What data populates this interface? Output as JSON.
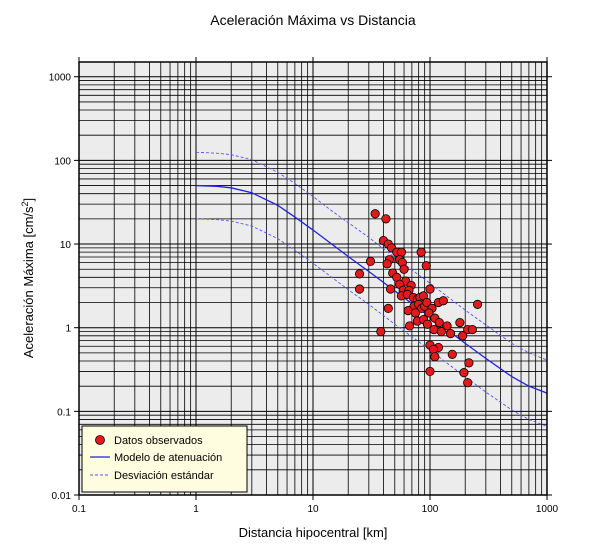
{
  "chart_data": {
    "type": "scatter",
    "title": "Aceleración Máxima vs Distancia",
    "xlabel": "Distancia hipocentral [km]",
    "ylabel_main": "Aceleración Máxima [cm/s",
    "ylabel_sup": "2",
    "ylabel_end": "]",
    "xscale": "log",
    "yscale": "log",
    "xlim": [
      0.1,
      1000
    ],
    "ylim": [
      0.01,
      1500
    ],
    "grid": true,
    "legend_position": "bottom-left",
    "x_ticks": [
      {
        "value": 0.1,
        "label": "0.1"
      },
      {
        "value": 1,
        "label": "1"
      },
      {
        "value": 10,
        "label": "10"
      },
      {
        "value": 100,
        "label": "100"
      },
      {
        "value": 1000,
        "label": "1000"
      }
    ],
    "y_ticks": [
      {
        "value": 0.01,
        "label": "0.01"
      },
      {
        "value": 0.1,
        "label": "0.1"
      },
      {
        "value": 1,
        "label": "1"
      },
      {
        "value": 10,
        "label": "10"
      },
      {
        "value": 100,
        "label": "100"
      },
      {
        "value": 1000,
        "label": "1000"
      }
    ],
    "colors": {
      "points": "#e31a1c",
      "model": "#2222dd",
      "std": "#5555ee",
      "legend_bg": "#fffde0"
    },
    "series": [
      {
        "name": "Datos observados",
        "kind": "points",
        "points": [
          [
            34,
            23
          ],
          [
            42,
            20
          ],
          [
            40,
            11
          ],
          [
            44,
            10
          ],
          [
            47,
            9
          ],
          [
            52,
            8
          ],
          [
            57,
            8
          ],
          [
            84,
            8
          ],
          [
            31,
            6.2
          ],
          [
            45,
            6.5
          ],
          [
            43,
            5.8
          ],
          [
            55,
            6.5
          ],
          [
            58,
            6
          ],
          [
            60,
            5
          ],
          [
            93,
            5.5
          ],
          [
            25,
            4.4
          ],
          [
            48,
            4.5
          ],
          [
            52,
            4
          ],
          [
            62,
            3.6
          ],
          [
            55,
            3.3
          ],
          [
            69,
            3.2
          ],
          [
            25,
            2.9
          ],
          [
            46,
            2.9
          ],
          [
            59,
            2.8
          ],
          [
            66,
            2.8
          ],
          [
            57,
            2.4
          ],
          [
            64,
            2.5
          ],
          [
            72,
            2.3
          ],
          [
            78,
            2.2
          ],
          [
            82,
            2.3
          ],
          [
            88,
            2.4
          ],
          [
            100,
            2.9
          ],
          [
            73,
            1.8
          ],
          [
            80,
            1.9
          ],
          [
            85,
            1.7
          ],
          [
            90,
            1.8
          ],
          [
            94,
            2
          ],
          [
            104,
            1.7
          ],
          [
            118,
            2
          ],
          [
            130,
            2.1
          ],
          [
            255,
            1.9
          ],
          [
            44,
            1.7
          ],
          [
            65,
            1.6
          ],
          [
            75,
            1.5
          ],
          [
            98,
            1.5
          ],
          [
            110,
            1.3
          ],
          [
            67,
            1.05
          ],
          [
            78,
            1.2
          ],
          [
            88,
            1.25
          ],
          [
            95,
            1.1
          ],
          [
            120,
            1.15
          ],
          [
            140,
            1.05
          ],
          [
            180,
            1.15
          ],
          [
            210,
            0.95
          ],
          [
            38,
            0.9
          ],
          [
            108,
            0.95
          ],
          [
            125,
            0.9
          ],
          [
            150,
            0.85
          ],
          [
            190,
            0.8
          ],
          [
            230,
            0.95
          ],
          [
            100,
            0.62
          ],
          [
            118,
            0.58
          ],
          [
            107,
            0.55
          ],
          [
            155,
            0.48
          ],
          [
            110,
            0.45
          ],
          [
            215,
            0.38
          ],
          [
            100,
            0.3
          ],
          [
            195,
            0.29
          ],
          [
            210,
            0.22
          ]
        ]
      },
      {
        "name": "Modelo de atenuación",
        "kind": "line",
        "points": [
          [
            1,
            50
          ],
          [
            1.5,
            49
          ],
          [
            2,
            47
          ],
          [
            3,
            41
          ],
          [
            5,
            29
          ],
          [
            7,
            21
          ],
          [
            10,
            14.7
          ],
          [
            15,
            9.6
          ],
          [
            20,
            7.1
          ],
          [
            30,
            4.7
          ],
          [
            50,
            2.75
          ],
          [
            70,
            1.95
          ],
          [
            100,
            1.35
          ],
          [
            150,
            0.88
          ],
          [
            200,
            0.65
          ],
          [
            300,
            0.43
          ],
          [
            500,
            0.26
          ],
          [
            700,
            0.2
          ],
          [
            1000,
            0.165
          ]
        ]
      },
      {
        "name": "Desviación estándar",
        "kind": "dashed",
        "points": [
          [
            1,
            125
          ],
          [
            1.5,
            122
          ],
          [
            2,
            117
          ],
          [
            3,
            102
          ],
          [
            5,
            72
          ],
          [
            7,
            53
          ],
          [
            10,
            37
          ],
          [
            15,
            24
          ],
          [
            20,
            18
          ],
          [
            30,
            12
          ],
          [
            50,
            6.9
          ],
          [
            70,
            4.9
          ],
          [
            100,
            3.4
          ],
          [
            150,
            2.2
          ],
          [
            200,
            1.62
          ],
          [
            300,
            1.08
          ],
          [
            500,
            0.65
          ],
          [
            700,
            0.5
          ],
          [
            1000,
            0.41
          ]
        ]
      },
      {
        "name": "",
        "kind": "dashed",
        "points": [
          [
            1,
            20
          ],
          [
            1.5,
            19.6
          ],
          [
            2,
            18.8
          ],
          [
            3,
            16.4
          ],
          [
            5,
            11.6
          ],
          [
            7,
            8.4
          ],
          [
            10,
            5.9
          ],
          [
            15,
            3.85
          ],
          [
            20,
            2.85
          ],
          [
            30,
            1.9
          ],
          [
            50,
            1.1
          ],
          [
            70,
            0.78
          ],
          [
            100,
            0.54
          ],
          [
            150,
            0.35
          ],
          [
            200,
            0.26
          ],
          [
            300,
            0.17
          ],
          [
            500,
            0.104
          ],
          [
            700,
            0.08
          ],
          [
            1000,
            0.066
          ]
        ]
      }
    ]
  }
}
